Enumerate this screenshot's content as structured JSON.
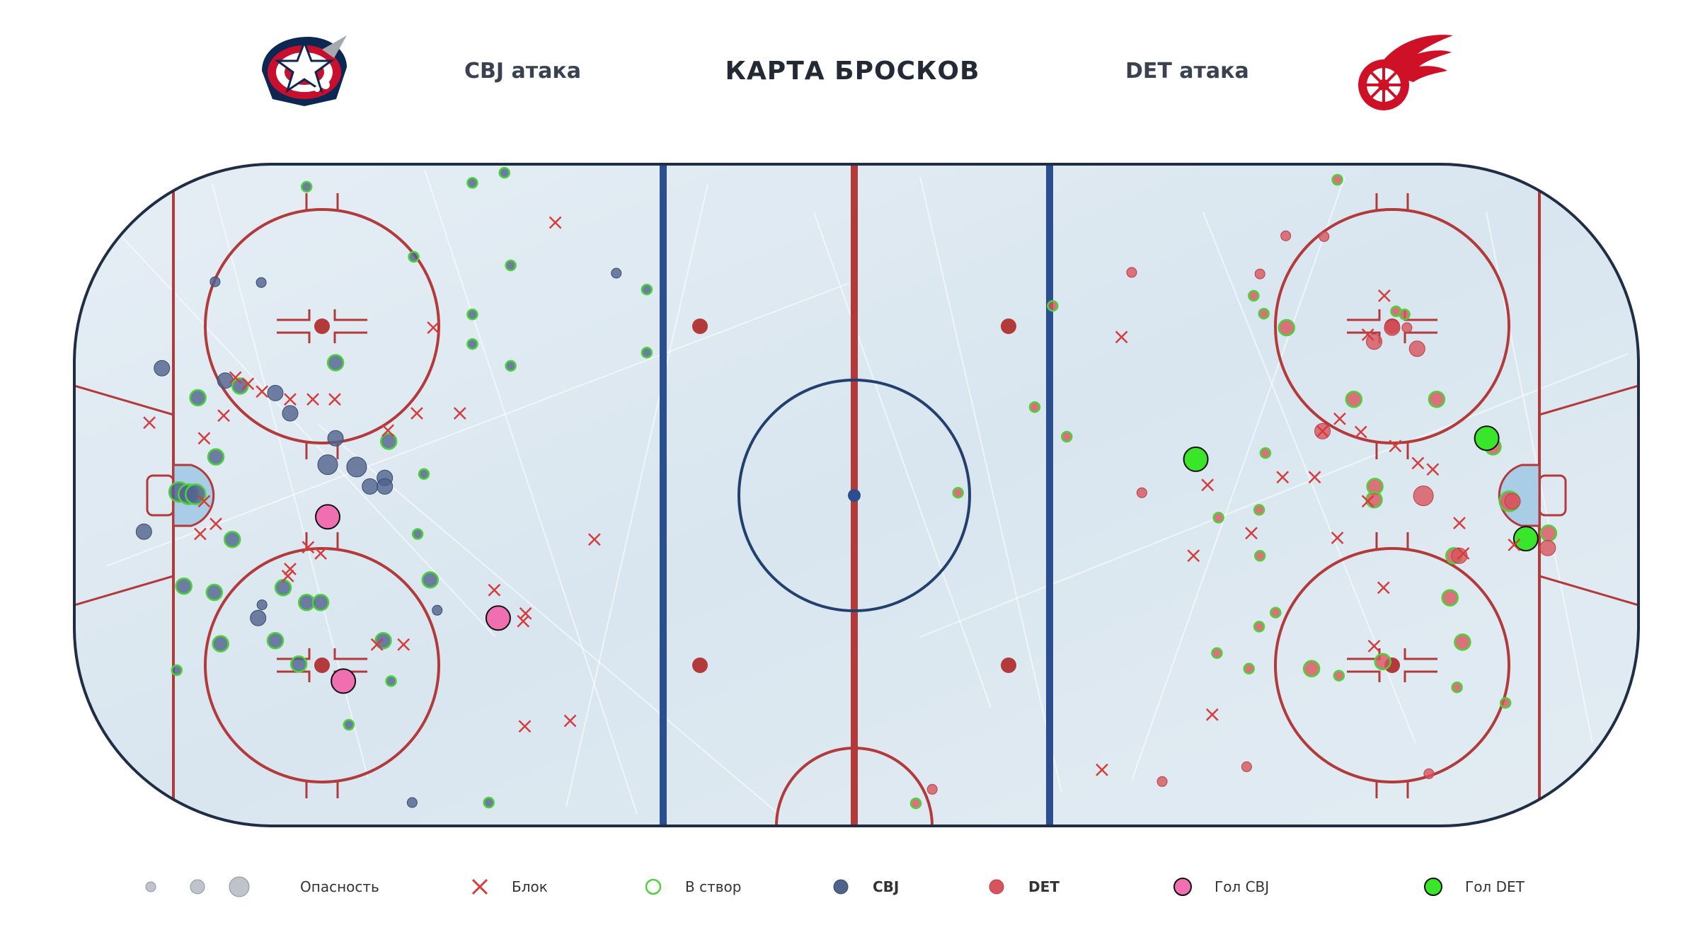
{
  "header": {
    "title": "КАРТА БРОСКОВ",
    "left_label": "CBJ атака",
    "right_label": "DET атака"
  },
  "logos": {
    "left": "columbus-blue-jackets-logo",
    "right": "detroit-red-wings-logo"
  },
  "legend": {
    "danger_label": "Опасность",
    "block_label": "Блок",
    "on_target_label": "В створ",
    "cbj_label": "CBJ",
    "det_label": "DET",
    "goal_cbj_label": "Гол CBJ",
    "goal_det_label": "Гол DET"
  },
  "colors": {
    "cbj": "#4f628c",
    "det": "#d8545c",
    "goal_cbj": "#f06fb0",
    "goal_det": "#39e62a",
    "block": "#d63c3c",
    "on_target_ring": "#4cd33a",
    "rink_line_red": "#b33a3a",
    "rink_line_blue": "#2b4f8e",
    "ice": "#dfeaf2"
  },
  "chart_data": {
    "type": "scatter",
    "title": "КАРТА БРОСКОВ",
    "x_units": "feet from center ice",
    "y_units": "feet from center",
    "xlim": [
      -100,
      100
    ],
    "ylim": [
      -42.5,
      42.5
    ],
    "grid": false,
    "legend_position": "bottom",
    "danger_sizes": [
      1,
      2,
      3
    ],
    "series": [
      {
        "name": "CBJ",
        "team": "cbj",
        "points": [
          {
            "x": -70.3,
            "y": 39.6,
            "danger": 1,
            "on_target": true
          },
          {
            "x": -82,
            "y": 27.4,
            "danger": 1,
            "on_target": false
          },
          {
            "x": -76.1,
            "y": 27.3,
            "danger": 1,
            "on_target": false
          },
          {
            "x": -56.6,
            "y": 30.6,
            "danger": 1,
            "on_target": true
          },
          {
            "x": -49.1,
            "y": 40.1,
            "danger": 1,
            "on_target": true
          },
          {
            "x": -45,
            "y": 41.4,
            "danger": 1,
            "on_target": true
          },
          {
            "x": -44.2,
            "y": 29.5,
            "danger": 1,
            "on_target": true
          },
          {
            "x": -49.1,
            "y": 23.2,
            "danger": 1,
            "on_target": true
          },
          {
            "x": -49.1,
            "y": 19.4,
            "danger": 1,
            "on_target": true
          },
          {
            "x": -44.2,
            "y": 16.6,
            "danger": 1,
            "on_target": true
          },
          {
            "x": -30.7,
            "y": 28.5,
            "danger": 1,
            "on_target": false
          },
          {
            "x": -26.8,
            "y": 26.4,
            "danger": 1,
            "on_target": true
          },
          {
            "x": -26.8,
            "y": 18.3,
            "danger": 1,
            "on_target": true
          },
          {
            "x": -88.8,
            "y": 16.3,
            "danger": 2,
            "on_target": false
          },
          {
            "x": -80.7,
            "y": 14.7,
            "danger": 2,
            "on_target": false
          },
          {
            "x": -78.8,
            "y": 14,
            "danger": 2,
            "on_target": true
          },
          {
            "x": -84.2,
            "y": 12.5,
            "danger": 2,
            "on_target": true
          },
          {
            "x": -74.3,
            "y": 13.1,
            "danger": 2,
            "on_target": false
          },
          {
            "x": -72.4,
            "y": 10.5,
            "danger": 2,
            "on_target": false
          },
          {
            "x": -66.6,
            "y": 17,
            "danger": 2,
            "on_target": true
          },
          {
            "x": -66.6,
            "y": 7.3,
            "danger": 2,
            "on_target": false
          },
          {
            "x": -59.8,
            "y": 6.9,
            "danger": 2,
            "on_target": true
          },
          {
            "x": -63.9,
            "y": 3.6,
            "danger": 3,
            "on_target": false
          },
          {
            "x": -67.6,
            "y": 3.9,
            "danger": 3,
            "on_target": false
          },
          {
            "x": -62.2,
            "y": 1.1,
            "danger": 2,
            "on_target": false
          },
          {
            "x": -55.3,
            "y": 2.7,
            "danger": 1,
            "on_target": true
          },
          {
            "x": -60.3,
            "y": 2.2,
            "danger": 2,
            "on_target": false
          },
          {
            "x": -60.3,
            "y": 1.1,
            "danger": 2,
            "on_target": false
          },
          {
            "x": -81.9,
            "y": 4.9,
            "danger": 2,
            "on_target": true
          },
          {
            "x": -86.6,
            "y": 0.4,
            "danger": 3,
            "on_target": true
          },
          {
            "x": -85.4,
            "y": 0.1,
            "danger": 3,
            "on_target": true
          },
          {
            "x": -84.5,
            "y": 0.1,
            "danger": 3,
            "on_target": true
          },
          {
            "x": -91.1,
            "y": -4.7,
            "danger": 2,
            "on_target": false
          },
          {
            "x": -79.8,
            "y": -5.7,
            "danger": 2,
            "on_target": true
          },
          {
            "x": -56.1,
            "y": -5,
            "danger": 1,
            "on_target": true
          },
          {
            "x": -73.3,
            "y": -11.9,
            "danger": 2,
            "on_target": true
          },
          {
            "x": -76,
            "y": -14.1,
            "danger": 1,
            "on_target": false
          },
          {
            "x": -82.1,
            "y": -12.5,
            "danger": 2,
            "on_target": true
          },
          {
            "x": -86,
            "y": -11.7,
            "danger": 2,
            "on_target": true
          },
          {
            "x": -70.3,
            "y": -13.8,
            "danger": 2,
            "on_target": true
          },
          {
            "x": -76.5,
            "y": -15.8,
            "danger": 2,
            "on_target": false
          },
          {
            "x": -68.5,
            "y": -13.8,
            "danger": 2,
            "on_target": true
          },
          {
            "x": -54.5,
            "y": -10.9,
            "danger": 2,
            "on_target": true
          },
          {
            "x": -53.6,
            "y": -14.8,
            "danger": 1,
            "on_target": false
          },
          {
            "x": -74.3,
            "y": -18.7,
            "danger": 2,
            "on_target": true
          },
          {
            "x": -81.3,
            "y": -19.1,
            "danger": 2,
            "on_target": true
          },
          {
            "x": -71.3,
            "y": -21.7,
            "danger": 2,
            "on_target": true
          },
          {
            "x": -60.5,
            "y": -18.7,
            "danger": 2,
            "on_target": true
          },
          {
            "x": -86.9,
            "y": -22.5,
            "danger": 1,
            "on_target": true
          },
          {
            "x": -59.5,
            "y": -23.9,
            "danger": 1,
            "on_target": true
          },
          {
            "x": -64.9,
            "y": -29.5,
            "danger": 1,
            "on_target": true
          },
          {
            "x": -56.8,
            "y": -39.5,
            "danger": 1,
            "on_target": false
          },
          {
            "x": -47,
            "y": -39.5,
            "danger": 1,
            "on_target": true
          }
        ]
      },
      {
        "name": "DET",
        "team": "det",
        "points": [
          {
            "x": 61.5,
            "y": 40.5,
            "danger": 1,
            "on_target": true
          },
          {
            "x": 54.9,
            "y": 33.3,
            "danger": 1,
            "on_target": false
          },
          {
            "x": 59.8,
            "y": 33.2,
            "danger": 1,
            "on_target": false
          },
          {
            "x": 35.2,
            "y": 28.6,
            "danger": 1,
            "on_target": false
          },
          {
            "x": 51.6,
            "y": 28.4,
            "danger": 1,
            "on_target": false
          },
          {
            "x": 50.8,
            "y": 25.6,
            "danger": 1,
            "on_target": true
          },
          {
            "x": 69,
            "y": 23.6,
            "danger": 1,
            "on_target": true
          },
          {
            "x": 52.1,
            "y": 23.3,
            "danger": 1,
            "on_target": true
          },
          {
            "x": 70.1,
            "y": 23.2,
            "danger": 1,
            "on_target": true
          },
          {
            "x": 25.1,
            "y": 24.3,
            "danger": 1,
            "on_target": true
          },
          {
            "x": 55,
            "y": 21.5,
            "danger": 2,
            "on_target": true
          },
          {
            "x": 68.5,
            "y": 21.5,
            "danger": 2,
            "on_target": false
          },
          {
            "x": 70.4,
            "y": 21.5,
            "danger": 1,
            "on_target": false
          },
          {
            "x": 66.2,
            "y": 19.7,
            "danger": 2,
            "on_target": false
          },
          {
            "x": 71.7,
            "y": 18.8,
            "danger": 2,
            "on_target": false
          },
          {
            "x": 22.8,
            "y": 11.3,
            "danger": 1,
            "on_target": true
          },
          {
            "x": 63.6,
            "y": 12.3,
            "danger": 2,
            "on_target": true
          },
          {
            "x": 74.2,
            "y": 12.3,
            "danger": 2,
            "on_target": true
          },
          {
            "x": 59.6,
            "y": 8.2,
            "danger": 2,
            "on_target": false
          },
          {
            "x": 80.4,
            "y": 7.1,
            "danger": 3,
            "on_target": true
          },
          {
            "x": 81.4,
            "y": 6.2,
            "danger": 2,
            "on_target": true
          },
          {
            "x": 26.9,
            "y": 7.5,
            "danger": 1,
            "on_target": true
          },
          {
            "x": 52.3,
            "y": 5.4,
            "danger": 1,
            "on_target": true
          },
          {
            "x": 66.3,
            "y": 1.1,
            "danger": 2,
            "on_target": true
          },
          {
            "x": 66.2,
            "y": -0.6,
            "danger": 2,
            "on_target": true
          },
          {
            "x": 72.5,
            "y": -0.1,
            "danger": 3,
            "on_target": false
          },
          {
            "x": 13,
            "y": 0.3,
            "danger": 1,
            "on_target": true
          },
          {
            "x": 36.5,
            "y": 0.3,
            "danger": 1,
            "on_target": false
          },
          {
            "x": 51.5,
            "y": -1.9,
            "danger": 1,
            "on_target": true
          },
          {
            "x": 46.3,
            "y": -2.9,
            "danger": 1,
            "on_target": true
          },
          {
            "x": 83.5,
            "y": -0.8,
            "danger": 3,
            "on_target": true
          },
          {
            "x": 83.9,
            "y": -0.8,
            "danger": 2,
            "on_target": false
          },
          {
            "x": 51.6,
            "y": -7.8,
            "danger": 1,
            "on_target": true
          },
          {
            "x": 76.4,
            "y": -7.8,
            "danger": 2,
            "on_target": true
          },
          {
            "x": 77.1,
            "y": -7.8,
            "danger": 2,
            "on_target": false
          },
          {
            "x": 88.5,
            "y": -4.9,
            "danger": 2,
            "on_target": true
          },
          {
            "x": 88.4,
            "y": -6.8,
            "danger": 2,
            "on_target": false
          },
          {
            "x": 75.9,
            "y": -13.2,
            "danger": 2,
            "on_target": true
          },
          {
            "x": 53.6,
            "y": -15.1,
            "danger": 1,
            "on_target": true
          },
          {
            "x": 51.5,
            "y": -16.9,
            "danger": 1,
            "on_target": true
          },
          {
            "x": 77.5,
            "y": -18.9,
            "danger": 2,
            "on_target": true
          },
          {
            "x": 46.1,
            "y": -20.3,
            "danger": 1,
            "on_target": true
          },
          {
            "x": 50.2,
            "y": -22.3,
            "danger": 1,
            "on_target": true
          },
          {
            "x": 58.2,
            "y": -22.3,
            "danger": 2,
            "on_target": true
          },
          {
            "x": 61.7,
            "y": -23.2,
            "danger": 1,
            "on_target": true
          },
          {
            "x": 67.3,
            "y": -21.4,
            "danger": 2,
            "on_target": true
          },
          {
            "x": 76.8,
            "y": -24.7,
            "danger": 1,
            "on_target": true
          },
          {
            "x": 83,
            "y": -26.7,
            "danger": 1,
            "on_target": true
          },
          {
            "x": 49.9,
            "y": -34.9,
            "danger": 1,
            "on_target": false
          },
          {
            "x": 73.2,
            "y": -35.8,
            "danger": 1,
            "on_target": false
          },
          {
            "x": 39.1,
            "y": -36.8,
            "danger": 1,
            "on_target": false
          },
          {
            "x": 9.7,
            "y": -37.8,
            "danger": 1,
            "on_target": false
          },
          {
            "x": 7.6,
            "y": -39.6,
            "danger": 1,
            "on_target": true
          }
        ]
      },
      {
        "name": "Гол CBJ",
        "team": "goal_cbj",
        "points": [
          {
            "x": -67.6,
            "y": -2.8,
            "danger": 3,
            "on_target": true
          },
          {
            "x": -45.8,
            "y": -15.8,
            "danger": 3,
            "on_target": true
          },
          {
            "x": -65.6,
            "y": -23.9,
            "danger": 3,
            "on_target": true
          }
        ]
      },
      {
        "name": "Гол DET",
        "team": "goal_det",
        "points": [
          {
            "x": 43.4,
            "y": 4.6,
            "danger": 3,
            "on_target": true
          },
          {
            "x": 80.6,
            "y": 7.3,
            "danger": 3,
            "on_target": true
          },
          {
            "x": 85.6,
            "y": -5.6,
            "danger": 3,
            "on_target": true
          }
        ]
      },
      {
        "name": "Блок",
        "team": "block",
        "points": [
          {
            "x": -38.5,
            "y": 35
          },
          {
            "x": -54.1,
            "y": 21.5
          },
          {
            "x": -90.4,
            "y": 9.3
          },
          {
            "x": -79.4,
            "y": 15.1
          },
          {
            "x": -77.8,
            "y": 14.3
          },
          {
            "x": -76,
            "y": 13.3
          },
          {
            "x": -72.4,
            "y": 12.3
          },
          {
            "x": -69.5,
            "y": 12.3
          },
          {
            "x": -66.7,
            "y": 12.3
          },
          {
            "x": -80.9,
            "y": 10.2
          },
          {
            "x": -83.4,
            "y": 7.3
          },
          {
            "x": -59.9,
            "y": 8.3
          },
          {
            "x": -56.2,
            "y": 10.5
          },
          {
            "x": -50.7,
            "y": 10.5
          },
          {
            "x": -83.4,
            "y": -0.8
          },
          {
            "x": -81.9,
            "y": -3.7
          },
          {
            "x": -83.9,
            "y": -5
          },
          {
            "x": -70.1,
            "y": -6.7
          },
          {
            "x": -68.5,
            "y": -7.5
          },
          {
            "x": -72.4,
            "y": -9.5
          },
          {
            "x": -72.7,
            "y": -10.4
          },
          {
            "x": -46.3,
            "y": -12.2
          },
          {
            "x": -42.3,
            "y": -15.2
          },
          {
            "x": -42.6,
            "y": -16.2
          },
          {
            "x": -61.3,
            "y": -19.2
          },
          {
            "x": -57.9,
            "y": -19.2
          },
          {
            "x": -33.5,
            "y": -5.7
          },
          {
            "x": -42.4,
            "y": -29.7
          },
          {
            "x": -36.6,
            "y": -29
          },
          {
            "x": 33.9,
            "y": 20.3
          },
          {
            "x": 67.5,
            "y": 25.6
          },
          {
            "x": 65.4,
            "y": 20.6
          },
          {
            "x": 61.8,
            "y": 9.8
          },
          {
            "x": 59.6,
            "y": 8.2
          },
          {
            "x": 68.9,
            "y": 6.3
          },
          {
            "x": 64.5,
            "y": 8.1
          },
          {
            "x": 71.8,
            "y": 4.1
          },
          {
            "x": 73.7,
            "y": 3.3
          },
          {
            "x": 54.5,
            "y": 2.3
          },
          {
            "x": 58.6,
            "y": 2.3
          },
          {
            "x": 44.9,
            "y": 1.3
          },
          {
            "x": 65.4,
            "y": -0.8
          },
          {
            "x": 77.1,
            "y": -3.6
          },
          {
            "x": 50.5,
            "y": -4.9
          },
          {
            "x": 61.5,
            "y": -5.5
          },
          {
            "x": 77.6,
            "y": -7.5
          },
          {
            "x": 43.1,
            "y": -7.8
          },
          {
            "x": 67.4,
            "y": -11.9
          },
          {
            "x": 84.1,
            "y": -6.4
          },
          {
            "x": 66.2,
            "y": -19.4
          },
          {
            "x": 45.5,
            "y": -28.2
          },
          {
            "x": 31.4,
            "y": -35.3
          }
        ]
      }
    ]
  }
}
